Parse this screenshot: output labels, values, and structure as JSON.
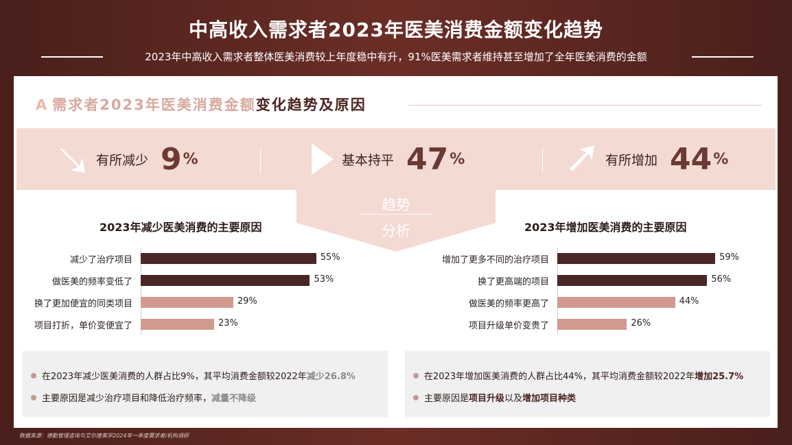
{
  "header": {
    "title": "中高收入需求者2023年医美消费金额变化趋势",
    "subtitle": "2023年中高收入需求者整体医美消费较上年度稳中有升，91%医美需求者维持甚至增加了全年医美消费的金额"
  },
  "section": {
    "title_light": "需求者2023年医美消费金额",
    "title_dark": "变化趋势及原因"
  },
  "kpis": [
    {
      "icon": "arrow-down-right-icon",
      "label": "有所减少",
      "value": "9",
      "unit": "%"
    },
    {
      "icon": "play-right-icon",
      "label": "基本持平",
      "value": "47",
      "unit": "%"
    },
    {
      "icon": "arrow-up-right-icon",
      "label": "有所增加",
      "value": "44",
      "unit": "%"
    }
  ],
  "divider_label": {
    "line1": "趋势",
    "line2": "分析"
  },
  "chart_data": [
    {
      "type": "bar",
      "orientation": "horizontal",
      "title": "2023年减少医美消费的主要原因",
      "categories": [
        "减少了治疗项目",
        "做医美的频率变低了",
        "换了更加便宜的同类项目",
        "项目打折，单价变便宜了"
      ],
      "values": [
        55,
        53,
        29,
        23
      ],
      "value_labels": [
        "55%",
        "53%",
        "29%",
        "23%"
      ],
      "unit": "%",
      "colors": [
        "#4a2726",
        "#4a2726",
        "#d09a8f",
        "#d09a8f"
      ],
      "xlim": [
        0,
        100
      ]
    },
    {
      "type": "bar",
      "orientation": "horizontal",
      "title": "2023年增加医美消费的主要原因",
      "categories": [
        "增加了更多不同的治疗项目",
        "换了更高端的项目",
        "做医美的频率更高了",
        "项目升级单价变贵了"
      ],
      "values": [
        59,
        56,
        44,
        26
      ],
      "value_labels": [
        "59%",
        "56%",
        "44%",
        "26%"
      ],
      "unit": "%",
      "colors": [
        "#4a2726",
        "#4a2726",
        "#d09a8f",
        "#d09a8f"
      ],
      "xlim": [
        0,
        100
      ]
    }
  ],
  "notes": {
    "left": [
      {
        "text": "在2023年减少医美消费的人群占比9%，其平均消费金额较2022年",
        "highlight": "减少26.8%"
      },
      {
        "text": "主要原因是减少治疗项目和降低治疗频率，",
        "highlight": "减量不降级"
      }
    ],
    "right": [
      {
        "text": "在2023年增加医美消费的人群占比44%，其平均消费金额较2022年",
        "highlight": "增加25.7%"
      },
      {
        "p1": "主要原因是",
        "h1": "项目升级",
        "p2": "以及",
        "h2": "增加项目种类"
      }
    ]
  },
  "source": "数据来源：德勤管理咨询与艾尔建美学2024年一季度需求者/机构调研"
}
